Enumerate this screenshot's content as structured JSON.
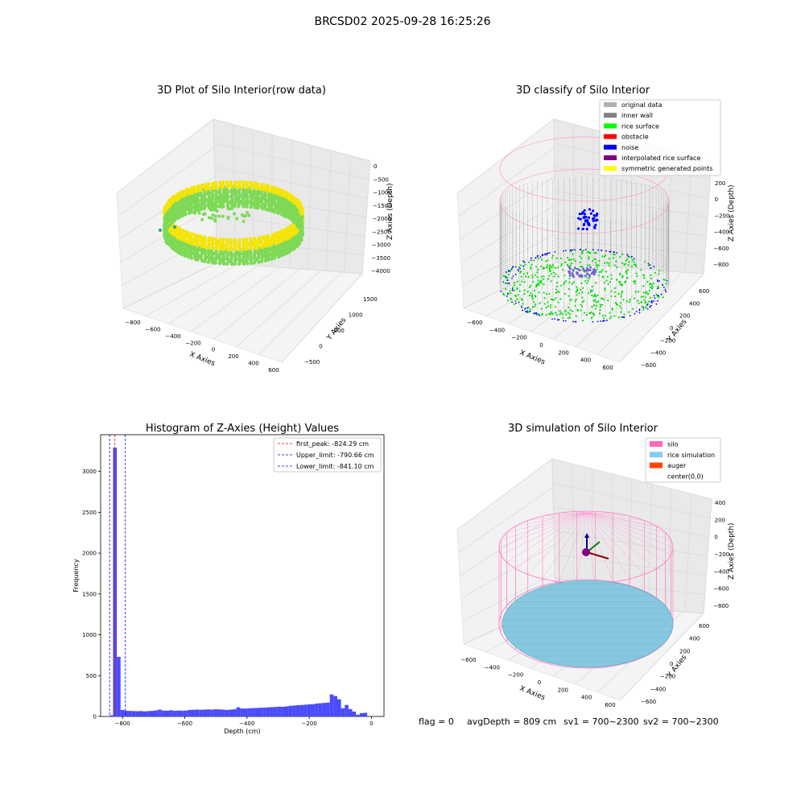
{
  "figure": {
    "suptitle": "BRCSD02 2025-09-28 16:25:26",
    "footer": {
      "flag": "flag = 0",
      "avg": "avgDepth = 809 cm",
      "sv1": "sv1 = 700~2300",
      "sv2": "sv2 = 700~2300"
    }
  },
  "chart_data": [
    {
      "type": "scatter",
      "projection": "3d",
      "title": "3D Plot of Silo Interior(row data)",
      "xlabel": "X Axies",
      "ylabel": "Y Axies",
      "zlabel": "Z Axies (Depth)",
      "x_ticks": [
        "−800",
        "−600",
        "−400",
        "−200",
        "0",
        "200",
        "400",
        "600"
      ],
      "y_ticks": [
        "−500",
        "0",
        "500",
        "1000",
        "1500"
      ],
      "z_ticks": [
        "0",
        "−500",
        "−1000",
        "−1500",
        "−2000",
        "−2500",
        "−3000",
        "−3500",
        "−4000"
      ],
      "xlim": [
        -900,
        650
      ],
      "ylim": [
        -600,
        1700
      ],
      "zlim": [
        -4100,
        100
      ],
      "colormap": [
        "#2a9d8f",
        "#7ed957",
        "#f4e409"
      ],
      "description_points": "ring of points colored by depth"
    },
    {
      "type": "scatter",
      "projection": "3d",
      "title": "3D classify of Silo Interior",
      "xlabel": "X Axies",
      "ylabel": "Y Axies",
      "zlabel": "Z Axies (Depth)",
      "x_ticks": [
        "−600",
        "−400",
        "−200",
        "0",
        "200",
        "400",
        "600"
      ],
      "y_ticks": [
        "−600",
        "−400",
        "−200",
        "0",
        "200",
        "400",
        "600"
      ],
      "z_ticks": [
        "200",
        "0",
        "−200",
        "−400",
        "−600",
        "−800"
      ],
      "legend": [
        {
          "label": "original data",
          "color": "#b0b0b0"
        },
        {
          "label": "inner wall",
          "color": "#808080"
        },
        {
          "label": "rice surface",
          "color": "#00ff00"
        },
        {
          "label": "obstacle",
          "color": "#ff0000"
        },
        {
          "label": "noise",
          "color": "#0000ff"
        },
        {
          "label": "interpolated rice surface",
          "color": "#800080"
        },
        {
          "label": "symmetric generated points",
          "color": "#ffff00"
        }
      ],
      "legend_loc": "upper right"
    },
    {
      "type": "bar",
      "title": "Histogram of Z-Axies (Height) Values",
      "xlabel": "Depth (cm)",
      "ylabel": "Frequency",
      "x_ticks": [
        "−800",
        "−600",
        "−400",
        "−200",
        "0"
      ],
      "y_ticks": [
        "0",
        "500",
        "1000",
        "1500",
        "2000",
        "2500",
        "3000"
      ],
      "xlim": [
        -870,
        40
      ],
      "ylim": [
        0,
        3450
      ],
      "bar_color": "#4b4bff",
      "bins": [
        {
          "x0": -841,
          "x1": -830,
          "v": 15
        },
        {
          "x0": -830,
          "x1": -818,
          "v": 3290
        },
        {
          "x0": -818,
          "x1": -806,
          "v": 730
        },
        {
          "x0": -806,
          "x1": -794,
          "v": 80
        },
        {
          "x0": -794,
          "x1": -782,
          "v": 70
        },
        {
          "x0": -782,
          "x1": -770,
          "v": 68
        },
        {
          "x0": -770,
          "x1": -758,
          "v": 66
        },
        {
          "x0": -758,
          "x1": -746,
          "v": 64
        },
        {
          "x0": -746,
          "x1": -734,
          "v": 66
        },
        {
          "x0": -734,
          "x1": -722,
          "v": 62
        },
        {
          "x0": -722,
          "x1": -710,
          "v": 66
        },
        {
          "x0": -710,
          "x1": -698,
          "v": 68
        },
        {
          "x0": -698,
          "x1": -686,
          "v": 74
        },
        {
          "x0": -686,
          "x1": -674,
          "v": 84
        },
        {
          "x0": -674,
          "x1": -662,
          "v": 72
        },
        {
          "x0": -662,
          "x1": -650,
          "v": 70
        },
        {
          "x0": -650,
          "x1": -638,
          "v": 76
        },
        {
          "x0": -638,
          "x1": -626,
          "v": 70
        },
        {
          "x0": -626,
          "x1": -614,
          "v": 72
        },
        {
          "x0": -614,
          "x1": -602,
          "v": 70
        },
        {
          "x0": -602,
          "x1": -590,
          "v": 72
        },
        {
          "x0": -590,
          "x1": -578,
          "v": 80
        },
        {
          "x0": -578,
          "x1": -566,
          "v": 82
        },
        {
          "x0": -566,
          "x1": -554,
          "v": 84
        },
        {
          "x0": -554,
          "x1": -542,
          "v": 82
        },
        {
          "x0": -542,
          "x1": -530,
          "v": 84
        },
        {
          "x0": -530,
          "x1": -518,
          "v": 86
        },
        {
          "x0": -518,
          "x1": -506,
          "v": 84
        },
        {
          "x0": -506,
          "x1": -494,
          "v": 88
        },
        {
          "x0": -494,
          "x1": -482,
          "v": 86
        },
        {
          "x0": -482,
          "x1": -470,
          "v": 84
        },
        {
          "x0": -470,
          "x1": -458,
          "v": 80
        },
        {
          "x0": -458,
          "x1": -446,
          "v": 84
        },
        {
          "x0": -446,
          "x1": -434,
          "v": 88
        },
        {
          "x0": -434,
          "x1": -422,
          "v": 112
        },
        {
          "x0": -422,
          "x1": -410,
          "v": 98
        },
        {
          "x0": -410,
          "x1": -398,
          "v": 96
        },
        {
          "x0": -398,
          "x1": -386,
          "v": 100
        },
        {
          "x0": -386,
          "x1": -374,
          "v": 102
        },
        {
          "x0": -374,
          "x1": -362,
          "v": 104
        },
        {
          "x0": -362,
          "x1": -350,
          "v": 106
        },
        {
          "x0": -350,
          "x1": -338,
          "v": 108
        },
        {
          "x0": -338,
          "x1": -326,
          "v": 112
        },
        {
          "x0": -326,
          "x1": -314,
          "v": 114
        },
        {
          "x0": -314,
          "x1": -302,
          "v": 116
        },
        {
          "x0": -302,
          "x1": -290,
          "v": 120
        },
        {
          "x0": -290,
          "x1": -278,
          "v": 118
        },
        {
          "x0": -278,
          "x1": -266,
          "v": 124
        },
        {
          "x0": -266,
          "x1": -254,
          "v": 130
        },
        {
          "x0": -254,
          "x1": -242,
          "v": 134
        },
        {
          "x0": -242,
          "x1": -230,
          "v": 138
        },
        {
          "x0": -230,
          "x1": -218,
          "v": 140
        },
        {
          "x0": -218,
          "x1": -206,
          "v": 144
        },
        {
          "x0": -206,
          "x1": -194,
          "v": 148
        },
        {
          "x0": -194,
          "x1": -182,
          "v": 150
        },
        {
          "x0": -182,
          "x1": -170,
          "v": 158
        },
        {
          "x0": -170,
          "x1": -158,
          "v": 162
        },
        {
          "x0": -158,
          "x1": -146,
          "v": 166
        },
        {
          "x0": -146,
          "x1": -134,
          "v": 170
        },
        {
          "x0": -134,
          "x1": -122,
          "v": 270
        },
        {
          "x0": -122,
          "x1": -110,
          "v": 250
        },
        {
          "x0": -110,
          "x1": -98,
          "v": 210
        },
        {
          "x0": -98,
          "x1": -86,
          "v": 100
        },
        {
          "x0": -86,
          "x1": -74,
          "v": 140
        },
        {
          "x0": -74,
          "x1": -62,
          "v": 90
        },
        {
          "x0": -62,
          "x1": -50,
          "v": 60
        },
        {
          "x0": -50,
          "x1": -38,
          "v": 20
        },
        {
          "x0": -38,
          "x1": -26,
          "v": 40
        },
        {
          "x0": -26,
          "x1": -14,
          "v": 45
        }
      ],
      "lines": [
        {
          "label": "first_peak: -824.29 cm",
          "x": -824.29,
          "color": "#ff0000"
        },
        {
          "label": "Upper_limit: -790.66 cm",
          "x": -790.66,
          "color": "#0000ff"
        },
        {
          "label": "Lower_limit: -841.10 cm",
          "x": -841.1,
          "color": "#0000ff"
        }
      ]
    },
    {
      "type": "scatter",
      "projection": "3d",
      "title": "3D simulation of Silo Interior",
      "xlabel": "X Axies",
      "ylabel": "Y Axies",
      "zlabel": "Z Axies (Depth)",
      "x_ticks": [
        "−600",
        "−400",
        "−200",
        "0",
        "200",
        "400",
        "600"
      ],
      "y_ticks": [
        "−600",
        "−400",
        "−200",
        "0",
        "200",
        "400",
        "600"
      ],
      "z_ticks": [
        "400",
        "200",
        "0",
        "−200",
        "−400",
        "−600",
        "−800"
      ],
      "legend": [
        {
          "label": "silo",
          "color": "#ff69b4"
        },
        {
          "label": "rice simulation",
          "color": "#87ceeb"
        },
        {
          "label": "auger",
          "color": "#ff4500"
        },
        {
          "label": "center(0,0)",
          "color": ""
        }
      ],
      "legend_loc": "upper right"
    }
  ]
}
